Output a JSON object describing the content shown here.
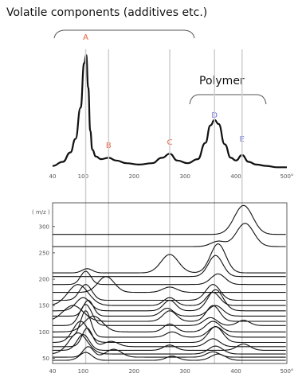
{
  "annotations": {
    "volatile": "Volatile components (additives etc.)",
    "polymer": "Polymer"
  },
  "colors": {
    "ink": "#111111",
    "peak_red": "#e8603c",
    "peak_blue": "#6b6fd6",
    "guide": "#cfcfcf",
    "frame": "#333333"
  },
  "chart_data": [
    {
      "type": "line",
      "name": "total-ion-thermogram",
      "xlim": [
        40,
        500
      ],
      "x_tick_labels": [
        "40",
        "100",
        "200",
        "300",
        "400",
        "500°"
      ],
      "x_tick_values": [
        40,
        100,
        200,
        300,
        400,
        500
      ],
      "peaks": [
        {
          "label": "A",
          "x": 105,
          "color": "peak_red"
        },
        {
          "label": "B",
          "x": 150,
          "color": "peak_red"
        },
        {
          "label": "C",
          "x": 270,
          "color": "peak_red"
        },
        {
          "label": "D",
          "x": 358,
          "color": "peak_blue"
        },
        {
          "label": "E",
          "x": 412,
          "color": "peak_blue"
        }
      ],
      "curve": {
        "x": [
          40,
          60,
          75,
          85,
          95,
          102,
          106,
          110,
          114,
          118,
          125,
          135,
          150,
          165,
          185,
          210,
          235,
          255,
          270,
          285,
          305,
          325,
          340,
          350,
          358,
          366,
          378,
          390,
          400,
          412,
          425,
          440,
          460,
          480,
          500
        ],
        "y": [
          0.02,
          0.05,
          0.12,
          0.22,
          0.45,
          0.78,
          0.84,
          0.6,
          0.28,
          0.14,
          0.09,
          0.07,
          0.08,
          0.06,
          0.04,
          0.03,
          0.04,
          0.08,
          0.11,
          0.06,
          0.04,
          0.07,
          0.19,
          0.32,
          0.36,
          0.33,
          0.18,
          0.08,
          0.06,
          0.1,
          0.05,
          0.03,
          0.02,
          0.01,
          0.01
        ]
      }
    },
    {
      "type": "line",
      "name": "extracted-ion-thermograms",
      "xlim": [
        40,
        500
      ],
      "ylim": [
        40,
        345
      ],
      "ylabel": "( m/z )",
      "x_tick_labels": [
        "40",
        "100",
        "200",
        "300",
        "400",
        "500°"
      ],
      "x_tick_values": [
        40,
        100,
        200,
        300,
        400,
        500
      ],
      "y_tick_labels": [
        "50",
        "100",
        "150",
        "200",
        "250",
        "300"
      ],
      "y_tick_values": [
        50,
        100,
        150,
        200,
        250,
        300
      ],
      "series": [
        {
          "base": 285,
          "peaks": [
            [
              415,
              55,
              18
            ]
          ]
        },
        {
          "base": 262,
          "peaks": [
            [
              418,
              44,
              17
            ],
            [
              365,
              10,
              14
            ]
          ]
        },
        {
          "base": 212,
          "peaks": [
            [
              270,
              35,
              17
            ],
            [
              365,
              55,
              15
            ],
            [
              108,
              8,
              10
            ]
          ]
        },
        {
          "base": 205,
          "peaks": [
            [
              360,
              40,
              14
            ]
          ]
        },
        {
          "base": 190,
          "peaks": [
            [
              105,
              25,
              10
            ],
            [
              365,
              20,
              14
            ]
          ]
        },
        {
          "base": 175,
          "peaks": [
            [
              145,
              30,
              16
            ],
            [
              270,
              10,
              14
            ]
          ]
        },
        {
          "base": 160,
          "peaks": [
            [
              105,
              30,
              12
            ],
            [
              355,
              30,
              14
            ]
          ]
        },
        {
          "base": 150,
          "peaks": [
            [
              90,
              40,
              20
            ],
            [
              270,
              15,
              12
            ],
            [
              355,
              25,
              13
            ]
          ]
        },
        {
          "base": 140,
          "peaks": [
            [
              100,
              25,
              14
            ],
            [
              270,
              20,
              12
            ],
            [
              360,
              40,
              15
            ]
          ]
        },
        {
          "base": 130,
          "peaks": [
            [
              110,
              30,
              10
            ],
            [
              265,
              15,
              12
            ],
            [
              360,
              20,
              14
            ]
          ]
        },
        {
          "base": 120,
          "peaks": [
            [
              80,
              30,
              20
            ],
            [
              270,
              20,
              13
            ],
            [
              355,
              30,
              13
            ]
          ]
        },
        {
          "base": 112,
          "peaks": [
            [
              105,
              40,
              12
            ],
            [
              350,
              15,
              13
            ],
            [
              415,
              10,
              12
            ]
          ]
        },
        {
          "base": 100,
          "peaks": [
            [
              120,
              30,
              18
            ],
            [
              270,
              15,
              12
            ],
            [
              355,
              20,
              14
            ]
          ]
        },
        {
          "base": 90,
          "peaks": [
            [
              105,
              50,
              10
            ],
            [
              275,
              10,
              12
            ],
            [
              360,
              20,
              14
            ]
          ]
        },
        {
          "base": 80,
          "peaks": [
            [
              95,
              40,
              15
            ],
            [
              360,
              30,
              14
            ]
          ]
        },
        {
          "base": 72,
          "peaks": [
            [
              108,
              35,
              10
            ],
            [
              155,
              10,
              14
            ],
            [
              355,
              15,
              13
            ]
          ]
        },
        {
          "base": 65,
          "peaks": [
            [
              100,
              30,
              12
            ],
            [
              270,
              10,
              12
            ],
            [
              415,
              12,
              13
            ]
          ]
        },
        {
          "base": 58,
          "peaks": [
            [
              90,
              40,
              18
            ],
            [
              360,
              15,
              14
            ]
          ]
        },
        {
          "base": 52,
          "peaks": [
            [
              110,
              20,
              10
            ],
            [
              160,
              15,
              15
            ],
            [
              355,
              10,
              13
            ]
          ]
        },
        {
          "base": 46,
          "peaks": [
            [
              105,
              15,
              12
            ],
            [
              275,
              8,
              12
            ],
            [
              365,
              12,
              14
            ]
          ]
        }
      ]
    }
  ]
}
